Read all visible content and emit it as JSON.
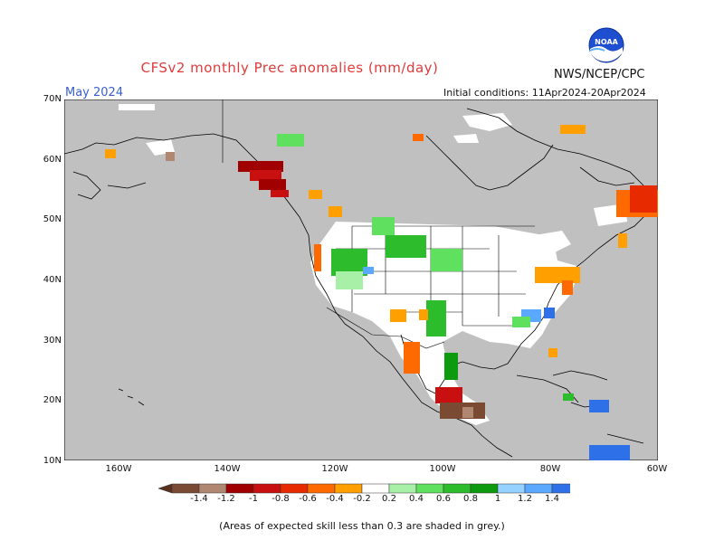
{
  "title": "CFSv2 monthly Prec anomalies (mm/day)",
  "agency": "NWS/NCEP/CPC",
  "month_label": "May 2024",
  "initial_conditions": "Initial conditions: 11Apr2024-20Apr2024",
  "logo_text": "NOAA",
  "lat_labels": [
    "70N",
    "60N",
    "50N",
    "40N",
    "30N",
    "20N",
    "10N"
  ],
  "lon_labels": [
    "160W",
    "140W",
    "120W",
    "100W",
    "80W",
    "60W"
  ],
  "colorbar": {
    "labels": [
      "-1.4",
      "-1.2",
      "-1",
      "-0.8",
      "-0.6",
      "-0.4",
      "-0.2",
      "0.2",
      "0.4",
      "0.6",
      "0.8",
      "1",
      "1.2",
      "1.4"
    ],
    "colors": [
      "#7a4a32",
      "#b08872",
      "#a00000",
      "#c81010",
      "#e82a00",
      "#ff6a00",
      "#ffa000",
      "#ffffff",
      "#a8f0a8",
      "#5fe05f",
      "#2cbc2c",
      "#0e9a0e",
      "#96d2ff",
      "#5aa8ff",
      "#2e70e8"
    ],
    "end_left_color": "#5a3020",
    "end_right_color": "#2060d8"
  },
  "footnote": "(Areas of expected skill less than 0.3 are shaded in grey.)",
  "map": {
    "background_grey": "#c0c0c0",
    "land_white": "#ffffff",
    "lat_range": [
      10,
      70
    ],
    "lon_range": [
      -170,
      -60
    ]
  }
}
